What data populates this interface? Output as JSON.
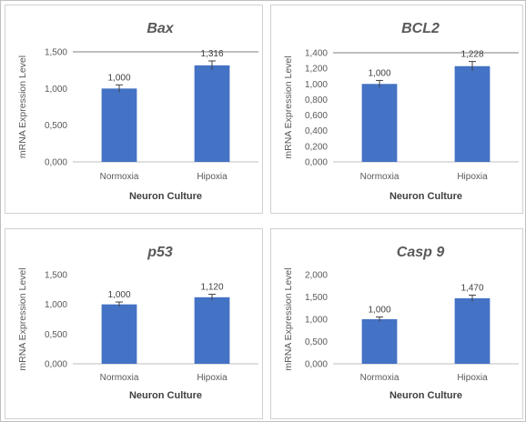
{
  "chart_data": [
    {
      "type": "bar",
      "title": "Bax",
      "categories": [
        "Normoxia",
        "Hipoxia"
      ],
      "values": [
        1.0,
        1.316
      ],
      "value_labels": [
        "1,000",
        "1,316"
      ],
      "error": [
        0.05,
        0.06
      ],
      "ylim": [
        0,
        1.5
      ],
      "yticks": [
        0,
        0.5,
        1.0,
        1.5
      ],
      "ytick_labels": [
        "0,000",
        "0,500",
        "1,000",
        "1,500"
      ],
      "xlabel": "Neuron Culture",
      "ylabel": "mRNA Expression Level",
      "bar_color": "#4472c4",
      "top_line": true
    },
    {
      "type": "bar",
      "title": "BCL2",
      "categories": [
        "Normoxia",
        "Hipoxia"
      ],
      "values": [
        1.0,
        1.228
      ],
      "value_labels": [
        "1,000",
        "1,228"
      ],
      "error": [
        0.045,
        0.06
      ],
      "ylim": [
        0,
        1.4
      ],
      "yticks": [
        0,
        0.2,
        0.4,
        0.6,
        0.8,
        1.0,
        1.2,
        1.4
      ],
      "ytick_labels": [
        "0,000",
        "0,200",
        "0,400",
        "0,600",
        "0,800",
        "1,000",
        "1,200",
        "1,400"
      ],
      "xlabel": "Neuron Culture",
      "ylabel": "mRNA Expression Level",
      "bar_color": "#4472c4",
      "top_line": true
    },
    {
      "type": "bar",
      "title": "p53",
      "categories": [
        "Normoxia",
        "Hipoxia"
      ],
      "values": [
        1.0,
        1.12
      ],
      "value_labels": [
        "1,000",
        "1,120"
      ],
      "error": [
        0.04,
        0.05
      ],
      "ylim": [
        0,
        1.5
      ],
      "yticks": [
        0,
        0.5,
        1.0,
        1.5
      ],
      "ytick_labels": [
        "0,000",
        "0,500",
        "1,000",
        "1,500"
      ],
      "xlabel": "Neuron Culture",
      "ylabel": "mRNA Expression Level",
      "bar_color": "#4472c4",
      "top_line": false
    },
    {
      "type": "bar",
      "title": "Casp 9",
      "categories": [
        "Normoxia",
        "Hipoxia"
      ],
      "values": [
        1.0,
        1.47
      ],
      "value_labels": [
        "1,000",
        "1,470"
      ],
      "error": [
        0.05,
        0.07
      ],
      "ylim": [
        0,
        2.0
      ],
      "yticks": [
        0,
        0.5,
        1.0,
        1.5,
        2.0
      ],
      "ytick_labels": [
        "0,000",
        "0,500",
        "1,000",
        "1,500",
        "2,000"
      ],
      "xlabel": "Neuron Culture",
      "ylabel": "mRNA Expression Level",
      "bar_color": "#4472c4",
      "top_line": false
    }
  ]
}
